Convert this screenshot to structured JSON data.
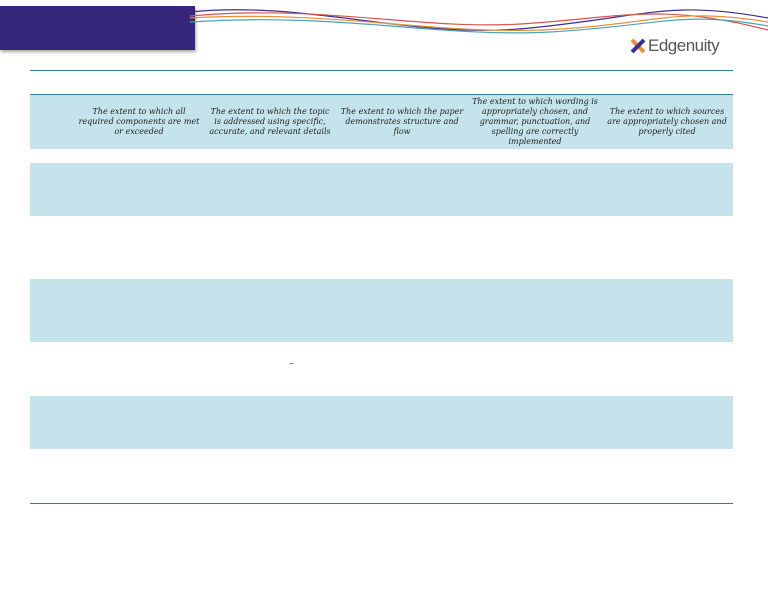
{
  "logo": {
    "brand": "Edgenuity",
    "icon": "x-logo-icon"
  },
  "rubric": {
    "criteria": [
      "The extent to which all required components are met or exceeded",
      "The extent to which the topic is addressed using specific, accurate, and relevant details",
      "The extent to which the paper demonstrates structure and flow",
      "The extent to which wording is appropriately chosen, and grammar, punctuation, and spelling are correctly implemented",
      "The extent to which sources are appropriately chosen and properly cited"
    ]
  },
  "stray_mark": "–",
  "colors": {
    "banner": "#35267a",
    "band": "#c5e3ea",
    "rule": "#2f7f8c"
  }
}
